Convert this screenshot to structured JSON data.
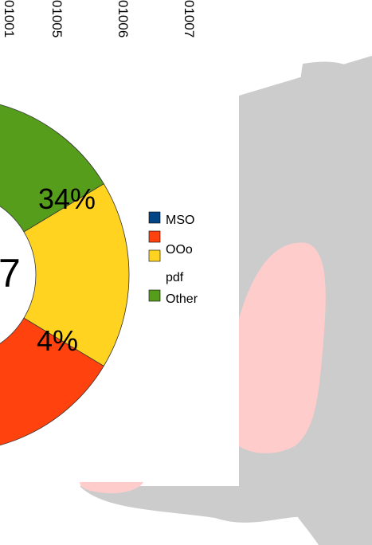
{
  "chart_data": {
    "type": "pie",
    "variant": "donut",
    "top_labels": [
      "01001",
      "01005",
      "01006",
      "01007"
    ],
    "center_value": "7",
    "slices_visible": [
      {
        "name": "OOo",
        "percent_label": "",
        "color": "#ff420e"
      },
      {
        "name": "pdf",
        "percent_label": "4%",
        "percent": 4,
        "color": "#ffd320"
      },
      {
        "name": "Other",
        "percent_label": "34%",
        "percent": 34,
        "color": "#579d1c"
      }
    ],
    "legend": [
      {
        "name": "MSO",
        "color": "#004586"
      },
      {
        "name": "OOo",
        "color": "#ff420e"
      },
      {
        "name": "pdf",
        "color": "#ffd320"
      },
      {
        "name": "Other",
        "color": "#579d1c"
      }
    ],
    "legend_position": "right"
  },
  "colors": {
    "background_blob": "#cccccc",
    "background_inner": "#ffcccc",
    "panel": "#ffffff"
  }
}
